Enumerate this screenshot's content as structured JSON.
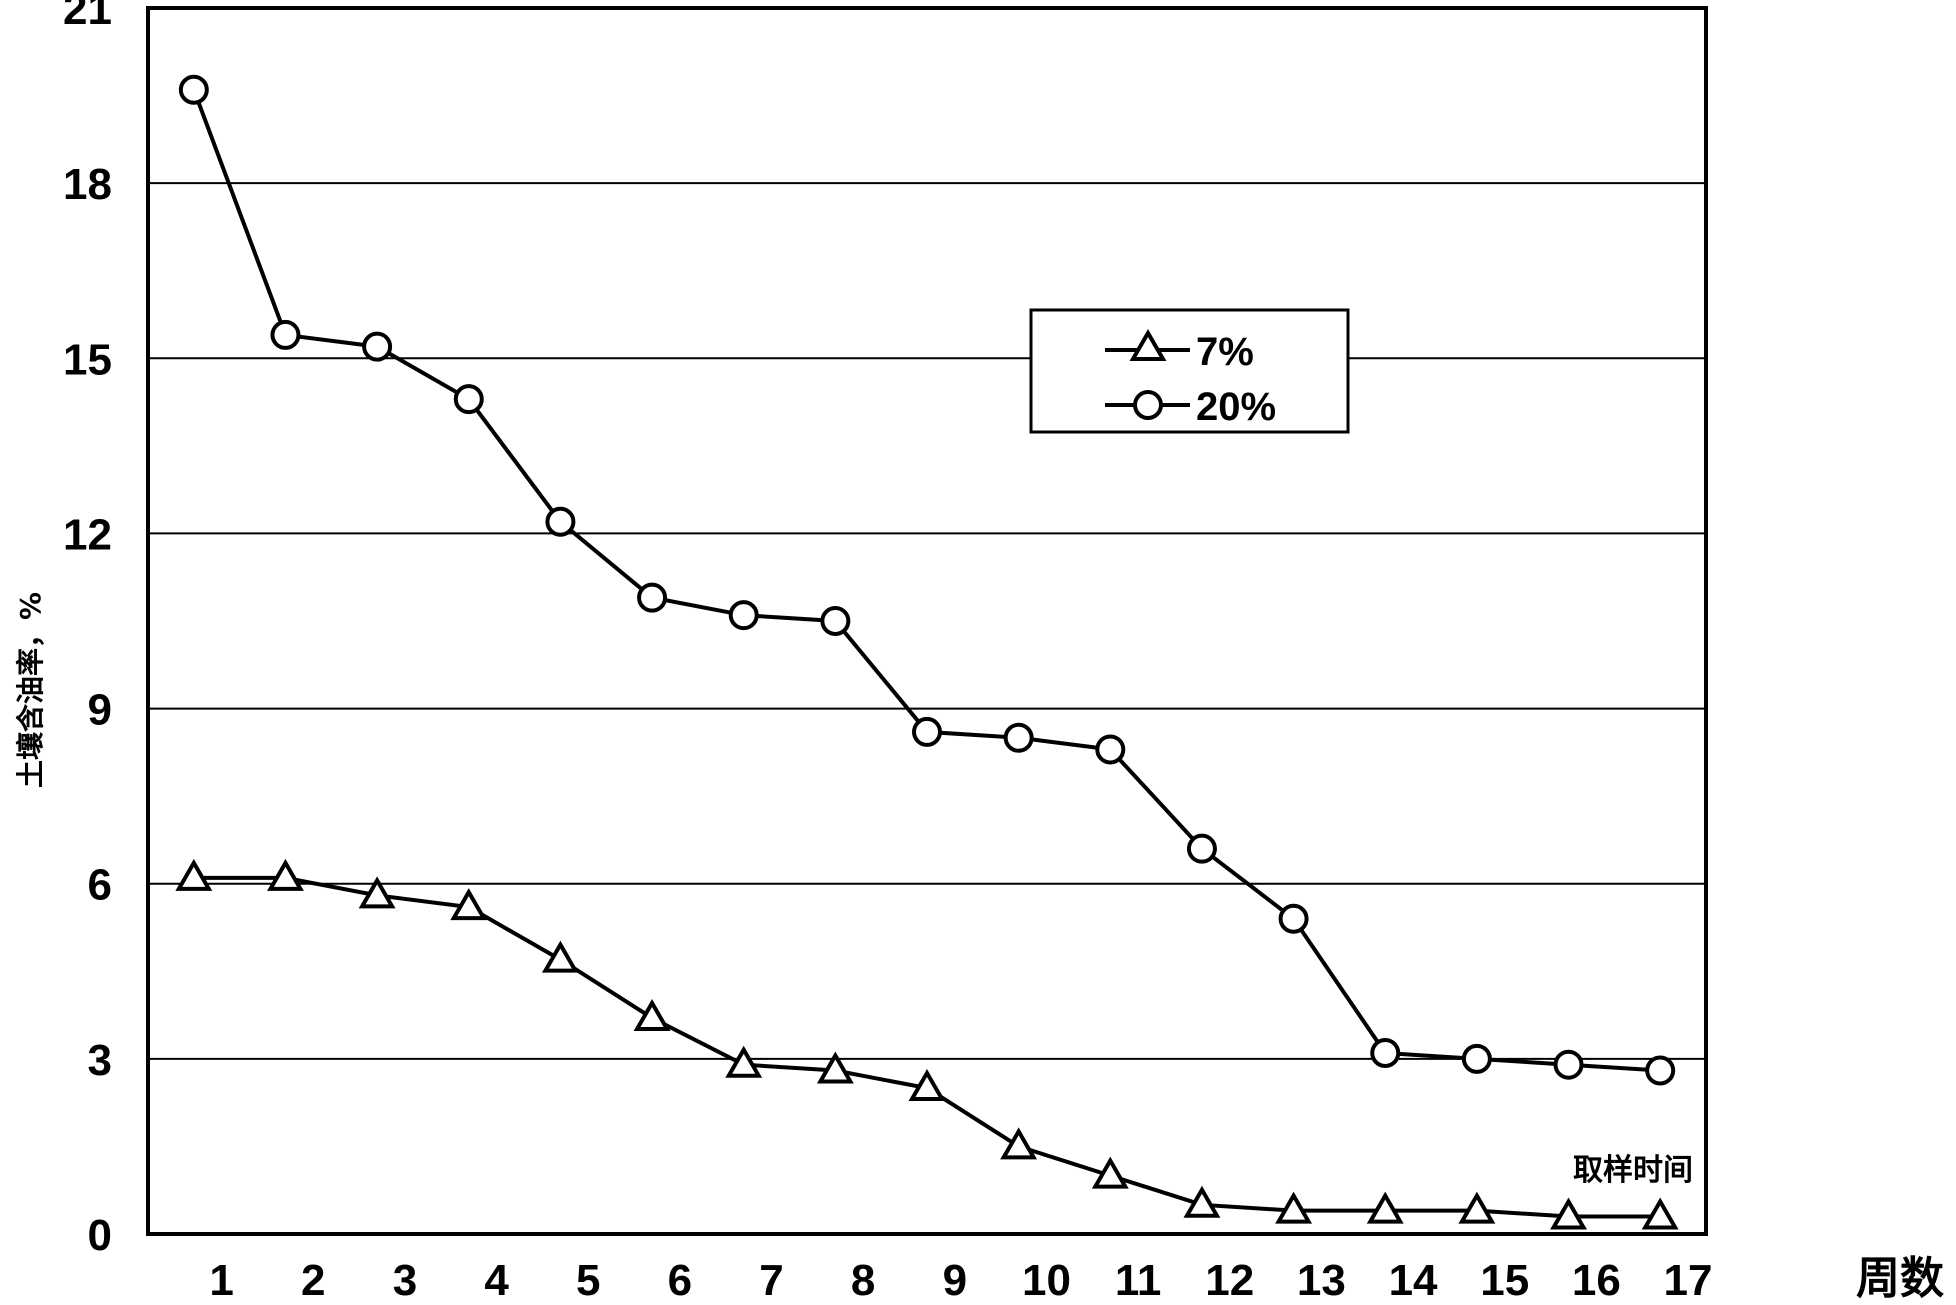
{
  "chart_data": {
    "type": "line",
    "title": "",
    "xlabel": "周数",
    "xlabel_annotation": "取样时间",
    "ylabel": "土壤含油率，%",
    "xlim": [
      0,
      17
    ],
    "ylim": [
      0,
      21
    ],
    "x_ticks": [
      1,
      2,
      3,
      4,
      5,
      6,
      7,
      8,
      9,
      10,
      11,
      12,
      13,
      14,
      15,
      16,
      17
    ],
    "y_ticks": [
      0,
      3,
      6,
      9,
      12,
      15,
      18,
      21
    ],
    "grid": "horizontal",
    "legend_position": "upper-middle",
    "x": [
      0.5,
      1.5,
      2.5,
      3.5,
      4.5,
      5.5,
      6.5,
      7.5,
      8.5,
      9.5,
      10.5,
      11.5,
      12.5,
      13.5,
      14.5,
      15.5,
      16.5
    ],
    "series": [
      {
        "name": "7%",
        "marker": "triangle",
        "values": [
          6.1,
          6.1,
          5.8,
          5.6,
          4.7,
          3.7,
          2.9,
          2.8,
          2.5,
          1.5,
          1.0,
          0.5,
          0.4,
          0.4,
          0.4,
          0.3,
          0.3
        ]
      },
      {
        "name": "20%",
        "marker": "circle",
        "values": [
          19.6,
          15.4,
          15.2,
          14.3,
          12.2,
          10.9,
          10.6,
          10.5,
          8.6,
          8.5,
          8.3,
          6.6,
          5.4,
          3.1,
          3.0,
          2.9,
          2.8
        ]
      }
    ]
  }
}
